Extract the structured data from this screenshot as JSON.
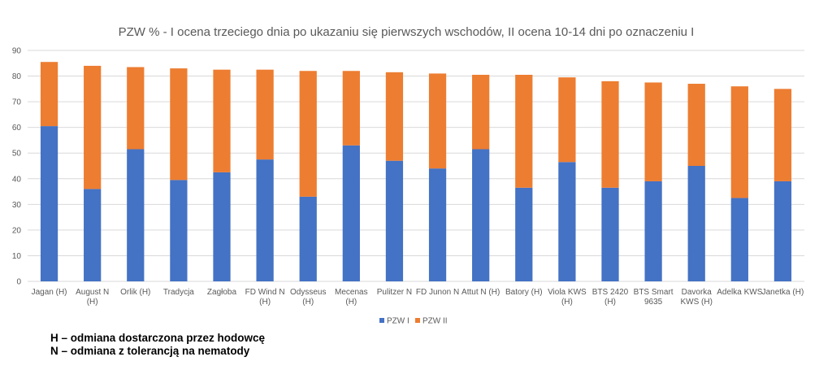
{
  "chart_data": {
    "type": "bar",
    "stacked": true,
    "title": "PZW % - I ocena trzeciego dnia po ukazaniu się pierwszych wschodów, II ocena 10-14 dni po oznaczeniu I",
    "categories": [
      [
        "Jagan (H)"
      ],
      [
        "August  N",
        "(H)"
      ],
      [
        "Orlik (H)"
      ],
      [
        "Tradycja"
      ],
      [
        "Zagłoba"
      ],
      [
        "FD Wind  N",
        "(H)"
      ],
      [
        "Odysseus",
        "(H)"
      ],
      [
        "Mecenas",
        "(H)"
      ],
      [
        "Pulitzer  N"
      ],
      [
        "FD Junon  N"
      ],
      [
        "Attut  N (H)"
      ],
      [
        "Batory (H)"
      ],
      [
        "Viola KWS",
        "(H)"
      ],
      [
        "BTS 2420",
        "(H)"
      ],
      [
        "BTS Smart",
        "9635"
      ],
      [
        "Davorka",
        "KWS (H)"
      ],
      [
        "Adelka KWS"
      ],
      [
        "Janetka (H)"
      ]
    ],
    "series": [
      {
        "name": "PZW I",
        "color": "#4472C4",
        "values": [
          60.5,
          36,
          51.5,
          39.5,
          42.5,
          47.5,
          33,
          53,
          47,
          44,
          51.5,
          36.5,
          46.5,
          36.5,
          39,
          45,
          32.5,
          39
        ]
      },
      {
        "name": "PZW II",
        "color": "#ED7D31",
        "values": [
          25,
          48,
          32,
          43.5,
          40,
          35,
          49,
          29,
          34.5,
          37,
          29,
          44,
          33,
          41.5,
          38.5,
          32,
          43.5,
          36
        ]
      }
    ],
    "ylim": [
      0,
      90
    ],
    "yticks": [
      0,
      10,
      20,
      30,
      40,
      50,
      60,
      70,
      80,
      90
    ],
    "grid": true,
    "legend_position": "bottom",
    "gridline_color": "#d9d9d9"
  },
  "notes": [
    "H – odmiana dostarczona przez hodowcę",
    "N – odmiana z tolerancją na nematody"
  ]
}
